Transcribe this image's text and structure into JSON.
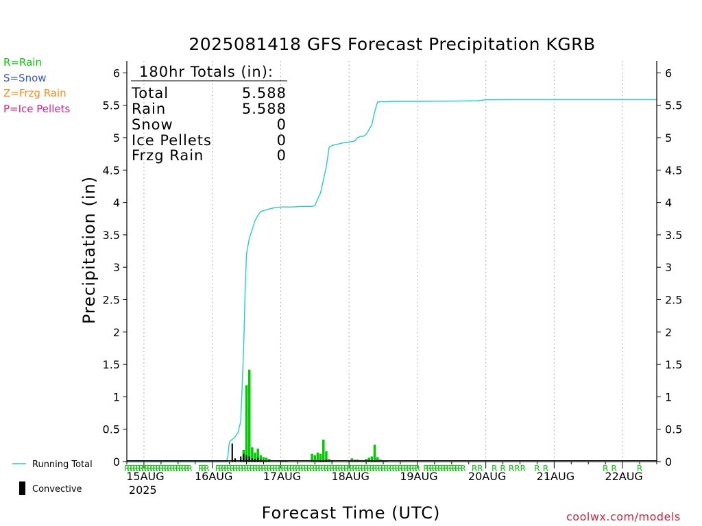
{
  "title": "2025081418 GFS Forecast Precipitation KGRB",
  "legend_types": [
    {
      "label": "R=Rain",
      "color": "#00cc00"
    },
    {
      "label": "S=Snow",
      "color": "#3355ee"
    },
    {
      "label": "Z=Frzg Rain",
      "color": "#ff8c1a"
    },
    {
      "label": "P=Ice Pellets",
      "color": "#e0208a"
    }
  ],
  "totals_box": {
    "header": "180hr Totals (in):",
    "rows": [
      {
        "label": "Total",
        "value": "5.588"
      },
      {
        "label": "Rain",
        "value": "5.588"
      },
      {
        "label": "Snow",
        "value": "0"
      },
      {
        "label": "Ice Pellets",
        "value": "0"
      },
      {
        "label": "Frzg Rain",
        "value": "0"
      }
    ]
  },
  "bottom_legend": {
    "running_total": "Running Total",
    "convective": "Convective"
  },
  "ylabel": "Precipitation (in)",
  "xlabel": "Forecast Time (UTC)",
  "credit": "coolwx.com/models",
  "colors": {
    "running_total": "#1ecfd0",
    "rain_bar": "#00cc00",
    "convective": "#000000",
    "grid": "#aaaaaa",
    "credit": "#e0203a"
  },
  "chart_data": {
    "type": "bar",
    "title": "2025081418 GFS Forecast Precipitation KGRB",
    "xlabel": "Forecast Time (UTC)",
    "ylabel": "Precipitation (in)",
    "ylim": [
      0,
      6.25
    ],
    "yticks": [
      "0",
      "0.5",
      "1",
      "1.5",
      "2",
      "2.5",
      "3",
      "3.5",
      "4",
      "4.5",
      "5",
      "5.5",
      "6"
    ],
    "x_unit": "forecast hour",
    "xlim": [
      -6,
      180
    ],
    "xticks": [
      {
        "hour": 0,
        "label": "15AUG"
      },
      {
        "hour": 24,
        "label": "16AUG"
      },
      {
        "hour": 48,
        "label": "17AUG"
      },
      {
        "hour": 72,
        "label": "18AUG"
      },
      {
        "hour": 96,
        "label": "19AUG"
      },
      {
        "hour": 120,
        "label": "20AUG"
      },
      {
        "hour": 144,
        "label": "21AUG"
      },
      {
        "hour": 168,
        "label": "22AUG"
      }
    ],
    "year_label": "2025",
    "grid": true,
    "series": [
      {
        "name": "Running Total",
        "type": "line",
        "x": [
          -6,
          29,
          29.5,
          30,
          30.5,
          31,
          32,
          33,
          34,
          35,
          35.5,
          36,
          37,
          38,
          39,
          40,
          41,
          44,
          46,
          48,
          52,
          56,
          59,
          60,
          61,
          62,
          63,
          64,
          65,
          66,
          67,
          70,
          72,
          74,
          75,
          76,
          77,
          78,
          80,
          81,
          82,
          83,
          84,
          88,
          96,
          110,
          117,
          120,
          130,
          150,
          180
        ],
        "y": [
          0,
          0,
          0.1,
          0.3,
          0.33,
          0.34,
          0.38,
          0.45,
          0.62,
          1.75,
          2.6,
          3.2,
          3.45,
          3.58,
          3.72,
          3.8,
          3.86,
          3.9,
          3.92,
          3.93,
          3.93,
          3.94,
          3.94,
          3.95,
          4.05,
          4.15,
          4.35,
          4.55,
          4.85,
          4.88,
          4.89,
          4.92,
          4.93,
          4.95,
          5.0,
          5.02,
          5.02,
          5.05,
          5.2,
          5.4,
          5.55,
          5.555,
          5.555,
          5.56,
          5.56,
          5.565,
          5.57,
          5.585,
          5.588,
          5.588,
          5.588
        ]
      },
      {
        "name": "Rain",
        "type": "bar",
        "x": [
          35,
          36,
          37,
          38,
          39,
          40,
          41,
          42,
          43,
          44,
          48,
          49,
          50,
          59,
          60,
          61,
          62,
          63,
          64,
          65,
          66,
          72,
          73,
          74,
          75,
          76,
          77,
          78,
          79,
          80,
          81,
          82,
          83,
          84,
          85
        ],
        "y": [
          0.18,
          1.18,
          1.42,
          0.22,
          0.14,
          0.2,
          0.1,
          0.07,
          0.06,
          0.04,
          0.02,
          0.02,
          0.02,
          0.12,
          0.1,
          0.14,
          0.12,
          0.34,
          0.16,
          0.04,
          0.02,
          0.02,
          0.05,
          0.03,
          0.03,
          0.02,
          0.02,
          0.04,
          0.06,
          0.08,
          0.26,
          0.07,
          0.03,
          0.02,
          0.02
        ]
      },
      {
        "name": "Convective",
        "type": "bar",
        "x": [
          31,
          32,
          34,
          35,
          36,
          37,
          38,
          39,
          40,
          41,
          62,
          63,
          64,
          80,
          81
        ],
        "y": [
          0.28,
          0.05,
          0.08,
          0.12,
          0.1,
          0.08,
          0.05,
          0.04,
          0.06,
          0.03,
          0.02,
          0.02,
          0.03,
          0.01,
          0.01
        ]
      }
    ],
    "ptype_markers": {
      "hours": [
        -6,
        -5,
        -4,
        -3,
        -2,
        -1,
        0,
        1,
        2,
        3,
        4,
        5,
        6,
        7,
        8,
        9,
        10,
        11,
        12,
        13,
        14,
        15,
        16,
        20,
        21,
        22,
        26,
        27,
        28,
        29,
        30,
        31,
        32,
        33,
        34,
        35,
        36,
        37,
        38,
        39,
        40,
        41,
        42,
        43,
        44,
        45,
        46,
        47,
        48,
        49,
        50,
        51,
        52,
        53,
        54,
        55,
        56,
        57,
        58,
        59,
        60,
        61,
        62,
        63,
        64,
        65,
        66,
        67,
        68,
        69,
        70,
        71,
        72,
        73,
        74,
        75,
        76,
        77,
        78,
        79,
        80,
        81,
        82,
        83,
        84,
        85,
        86,
        87,
        88,
        89,
        90,
        91,
        92,
        93,
        94,
        95,
        96,
        99,
        100,
        101,
        102,
        103,
        104,
        105,
        106,
        107,
        108,
        109,
        110,
        111,
        112,
        116,
        118,
        123,
        126,
        129,
        131,
        133,
        138,
        141,
        162,
        165,
        174
      ],
      "symbol": "R"
    }
  }
}
